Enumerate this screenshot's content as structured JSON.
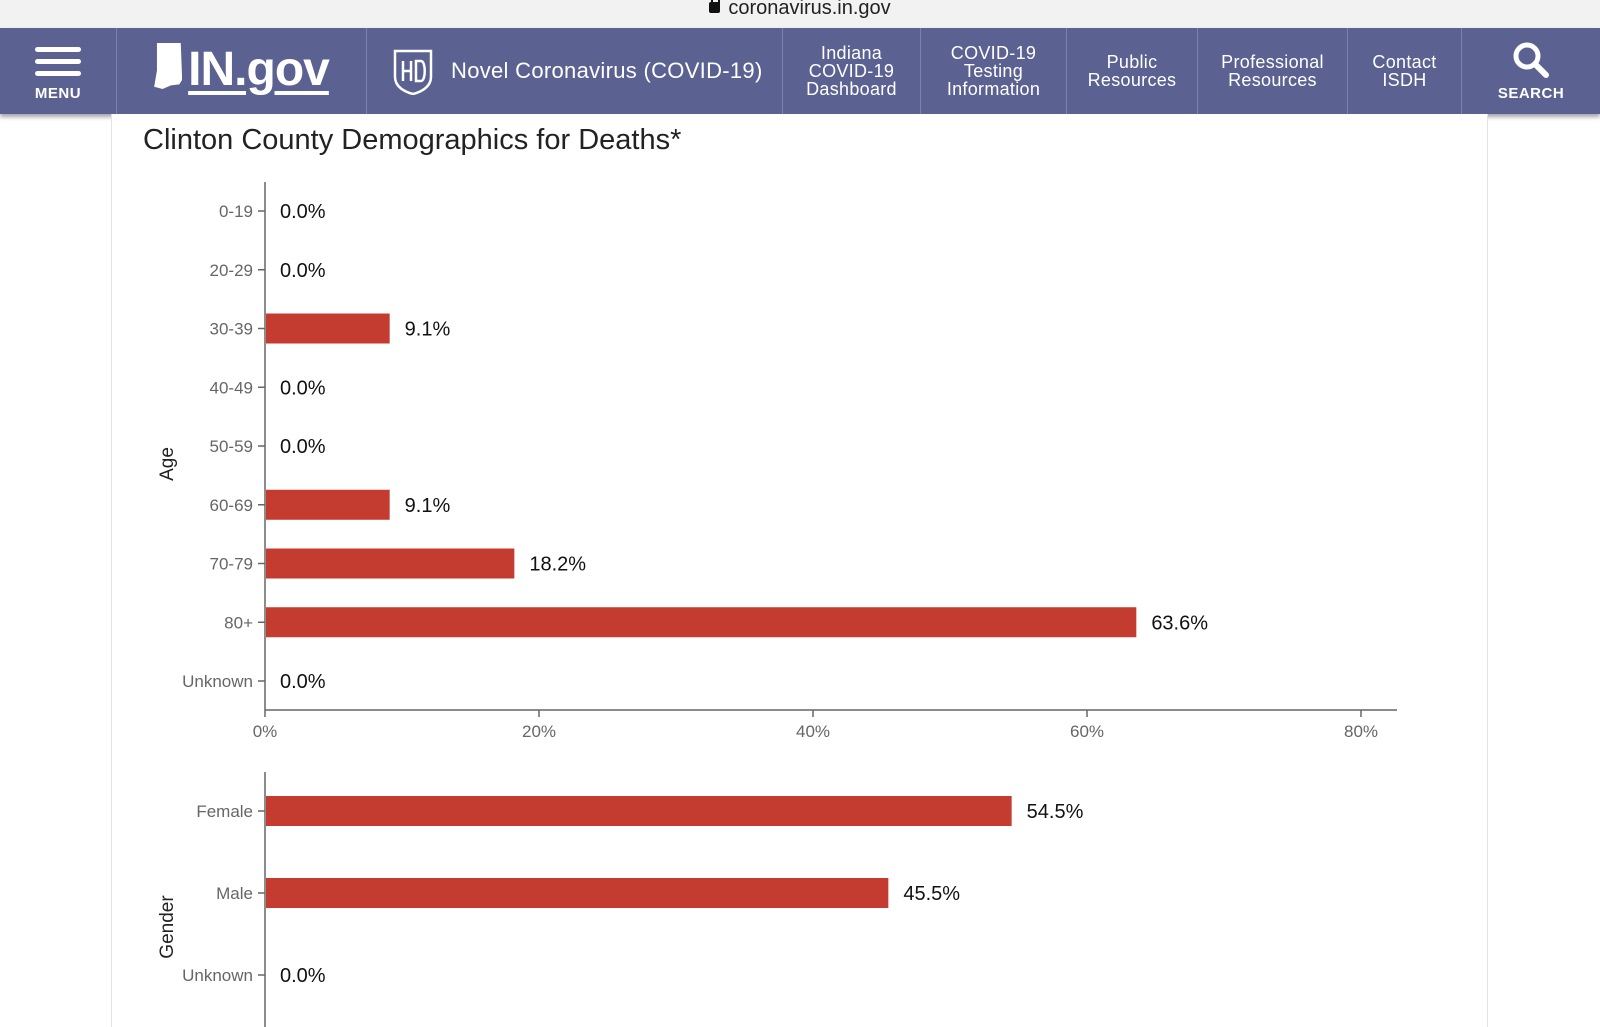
{
  "browser": {
    "url": "coronavirus.in.gov"
  },
  "nav": {
    "menu_label": "MENU",
    "logo_text": "IN.gov",
    "section_label": "Novel Coronavirus (COVID-19)",
    "links": [
      {
        "lines": [
          "Indiana",
          "COVID-19",
          "Dashboard"
        ]
      },
      {
        "lines": [
          "COVID-19",
          "Testing",
          "Information"
        ]
      },
      {
        "lines": [
          "Public",
          "Resources"
        ]
      },
      {
        "lines": [
          "Professional",
          "Resources"
        ]
      },
      {
        "lines": [
          "Contact",
          "ISDH"
        ]
      }
    ],
    "search_label": "SEARCH",
    "background_color": "#5b6191"
  },
  "page": {
    "title": "Clinton County Demographics for Deaths*"
  },
  "chart_data": [
    {
      "type": "bar",
      "orientation": "horizontal",
      "ylabel": "Age",
      "categories": [
        "0-19",
        "20-29",
        "30-39",
        "40-49",
        "50-59",
        "60-69",
        "70-79",
        "80+",
        "Unknown"
      ],
      "values": [
        0.0,
        0.0,
        9.1,
        0.0,
        0.0,
        9.1,
        18.2,
        63.6,
        0.0
      ],
      "value_labels": [
        "0.0%",
        "0.0%",
        "9.1%",
        "0.0%",
        "0.0%",
        "9.1%",
        "18.2%",
        "63.6%",
        "0.0%"
      ],
      "xlim": [
        0,
        82.6
      ],
      "x_ticks": [
        0,
        20,
        40,
        60,
        80
      ],
      "x_tick_labels": [
        "0%",
        "20%",
        "40%",
        "60%",
        "80%"
      ],
      "bar_color": "#c43b2f"
    },
    {
      "type": "bar",
      "orientation": "horizontal",
      "ylabel": "Gender",
      "categories": [
        "Female",
        "Male",
        "Unknown"
      ],
      "values": [
        54.5,
        45.5,
        0.0
      ],
      "value_labels": [
        "54.5%",
        "45.5%",
        "0.0%"
      ],
      "xlim": [
        0,
        82.6
      ],
      "bar_color": "#c43b2f"
    }
  ]
}
